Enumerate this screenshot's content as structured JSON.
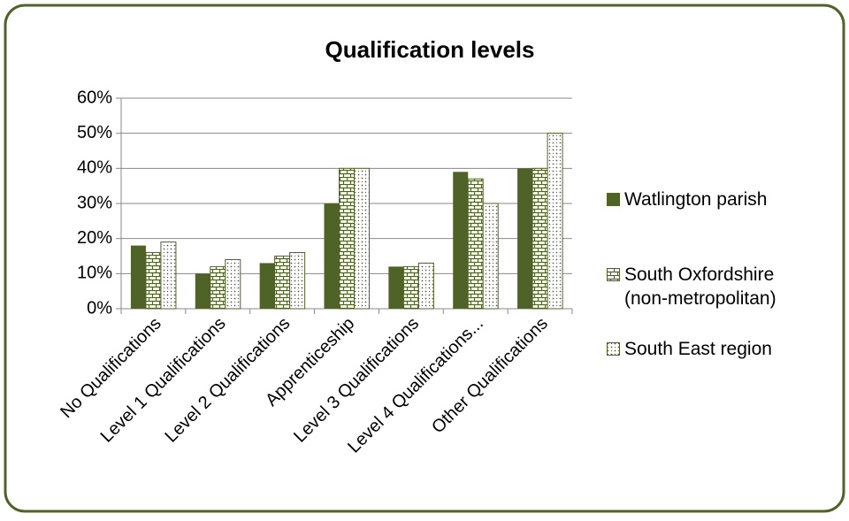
{
  "chart_data": {
    "type": "bar",
    "title": "Qualification levels",
    "categories": [
      "No Qualifications",
      "Level 1 Qualifications",
      "Level 2 Qualifications",
      "Apprenticeship",
      "Level 3 Qualifications",
      "Level 4 Qualifications...",
      "Other Qualifications"
    ],
    "series": [
      {
        "name": "Watlington parish",
        "color": "#4f6228",
        "values": [
          18,
          10,
          13,
          30,
          12,
          39,
          40
        ]
      },
      {
        "name": "South Oxfordshire (non-metropolitan)",
        "color": "#4f6228",
        "values": [
          16,
          12,
          15,
          40,
          12,
          37,
          40
        ]
      },
      {
        "name": "South East region",
        "color": "#4f6228",
        "values": [
          19,
          14,
          16,
          40,
          13,
          30,
          50
        ]
      }
    ],
    "ylim": [
      0,
      60
    ],
    "yticks": [
      {
        "value": 0,
        "label": "0%"
      },
      {
        "value": 10,
        "label": "10%"
      },
      {
        "value": 20,
        "label": "20%"
      },
      {
        "value": 30,
        "label": "30%"
      },
      {
        "value": 40,
        "label": "40%"
      },
      {
        "value": 50,
        "label": "50%"
      },
      {
        "value": 60,
        "label": "60%"
      }
    ],
    "grid": true,
    "legend": "right"
  }
}
